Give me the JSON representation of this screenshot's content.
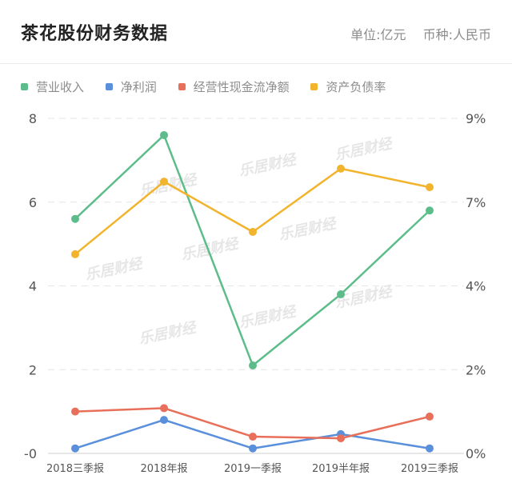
{
  "header": {
    "title": "茶花股份财务数据",
    "unit": "单位:亿元",
    "currency": "币种:人民币"
  },
  "watermark": "乐居财经",
  "chart_data": {
    "type": "line",
    "categories": [
      "2018三季报",
      "2018年报",
      "2019一季报",
      "2019半年报",
      "2019三季报"
    ],
    "left_axis": {
      "ticks": [
        "-0",
        "2",
        "4",
        "6",
        "8"
      ],
      "ylim": [
        0,
        8
      ]
    },
    "right_axis": {
      "ticks": [
        "0%",
        "2%",
        "4%",
        "7%",
        "9%"
      ],
      "ylim": [
        0,
        9
      ]
    },
    "series": [
      {
        "name": "营业收入",
        "axis": "left",
        "color": "#5dbd8a",
        "values": [
          5.6,
          7.6,
          2.1,
          3.8,
          5.8
        ]
      },
      {
        "name": "净利润",
        "axis": "left",
        "color": "#5a8fdc",
        "values": [
          0.12,
          0.8,
          0.12,
          0.46,
          0.12
        ]
      },
      {
        "name": "经营性现金流净额",
        "axis": "left",
        "color": "#e8705a",
        "values": [
          1.0,
          1.08,
          0.4,
          0.36,
          0.88
        ]
      },
      {
        "name": "资产负债率",
        "axis": "right",
        "color": "#f2b32d",
        "values": [
          5.35,
          7.3,
          5.95,
          7.65,
          7.15
        ]
      }
    ],
    "grid": true,
    "legend": "top-left"
  }
}
